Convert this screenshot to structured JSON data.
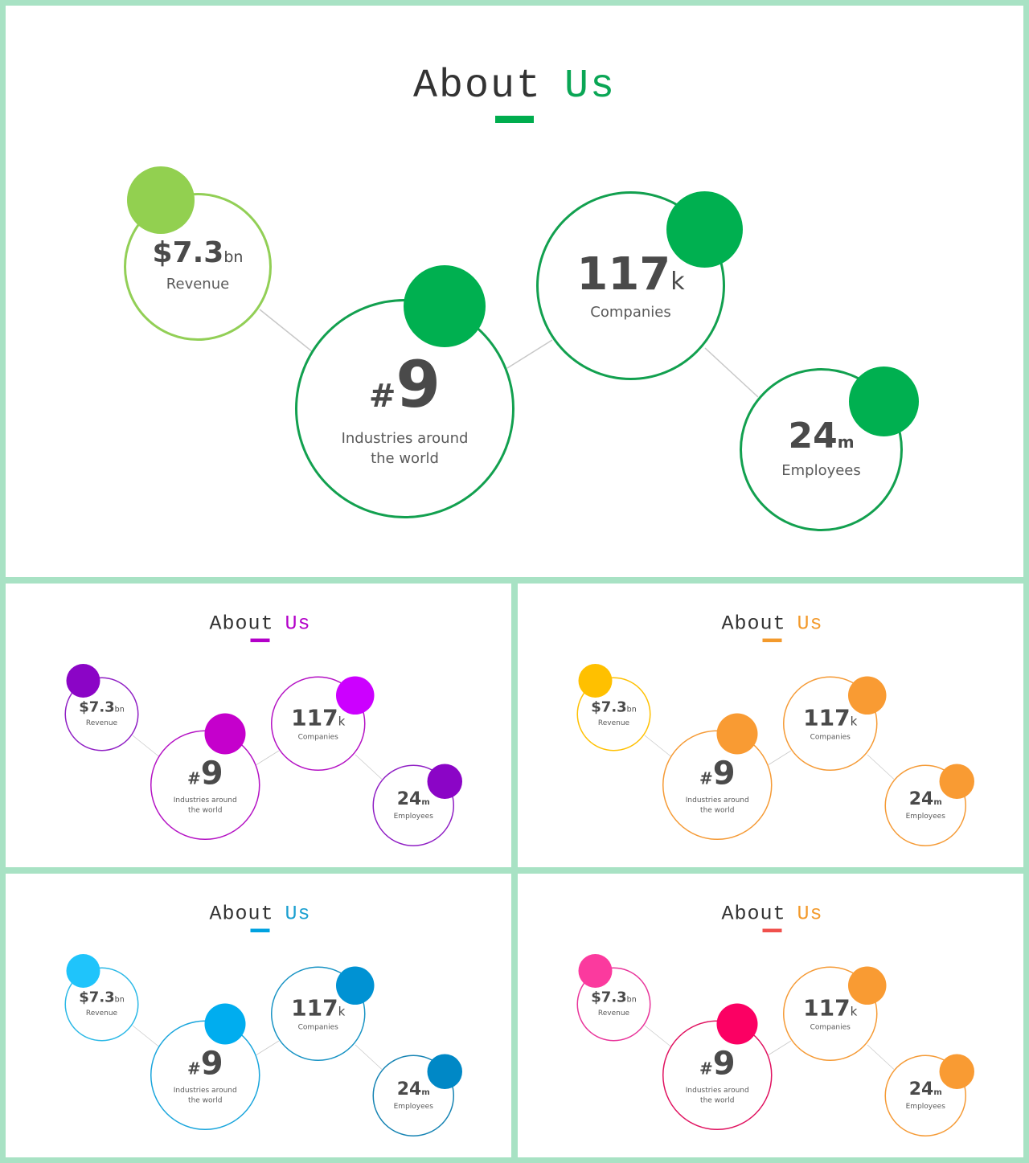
{
  "slides": [
    {
      "title_word1": "About",
      "title_word2": "Us",
      "colors": {
        "title_accent": "#0aa655",
        "underline": "#00ad4e",
        "revenue_ring": "#92cf56",
        "revenue_dot": "#92d050",
        "industries_ring": "#12a04f",
        "industries_dot": "#00b050",
        "companies_ring": "#12a04f",
        "companies_dot": "#00b050",
        "employees_ring": "#12a04f",
        "employees_dot": "#00b050"
      }
    },
    {
      "title_word1": "About",
      "title_word2": "Us",
      "colors": {
        "title_accent": "#b300c9",
        "underline": "#b300c9",
        "revenue_ring": "#8f1ec4",
        "revenue_dot": "#8b05c6",
        "industries_ring": "#b412c4",
        "industries_dot": "#c500cc",
        "companies_ring": "#b412c4",
        "companies_dot": "#cc00ff",
        "employees_ring": "#8f1ec4",
        "employees_dot": "#8b05c6"
      }
    },
    {
      "title_word1": "About",
      "title_word2": "Us",
      "colors": {
        "title_accent": "#f39a2c",
        "underline": "#f39a2c",
        "revenue_ring": "#ffc000",
        "revenue_dot": "#ffc000",
        "industries_ring": "#f59a35",
        "industries_dot": "#f99b33",
        "companies_ring": "#f59a35",
        "companies_dot": "#f99b33",
        "employees_ring": "#f59a35",
        "employees_dot": "#f99b33"
      }
    },
    {
      "title_word1": "About",
      "title_word2": "Us",
      "colors": {
        "title_accent": "#1a9fd0",
        "underline": "#00a2e0",
        "revenue_ring": "#2ab8e6",
        "revenue_dot": "#1fc4fb",
        "industries_ring": "#19a5dc",
        "industries_dot": "#00adef",
        "companies_ring": "#1893c4",
        "companies_dot": "#0092d3",
        "employees_ring": "#1583b3",
        "employees_dot": "#0088c6"
      }
    },
    {
      "title_word1": "About",
      "title_word2": "Us",
      "colors": {
        "title_accent": "#f39a2c",
        "underline": "#f0504c",
        "revenue_ring": "#e8349a",
        "revenue_dot": "#fb3a9e",
        "industries_ring": "#e0115f",
        "industries_dot": "#fb0063",
        "companies_ring": "#f59a35",
        "companies_dot": "#f99b33",
        "employees_ring": "#f59a35",
        "employees_dot": "#f99b33"
      }
    }
  ],
  "metrics": {
    "revenue": {
      "value": "$7.3",
      "unit": "bn",
      "label": "Revenue"
    },
    "industries": {
      "prefix": "#",
      "value": "9",
      "label_line1": "Industries around",
      "label_line2": "the world"
    },
    "companies": {
      "value": "117",
      "unit": "k",
      "label": "Companies"
    },
    "employees": {
      "value": "24",
      "unit": "m",
      "label": "Employees"
    }
  }
}
